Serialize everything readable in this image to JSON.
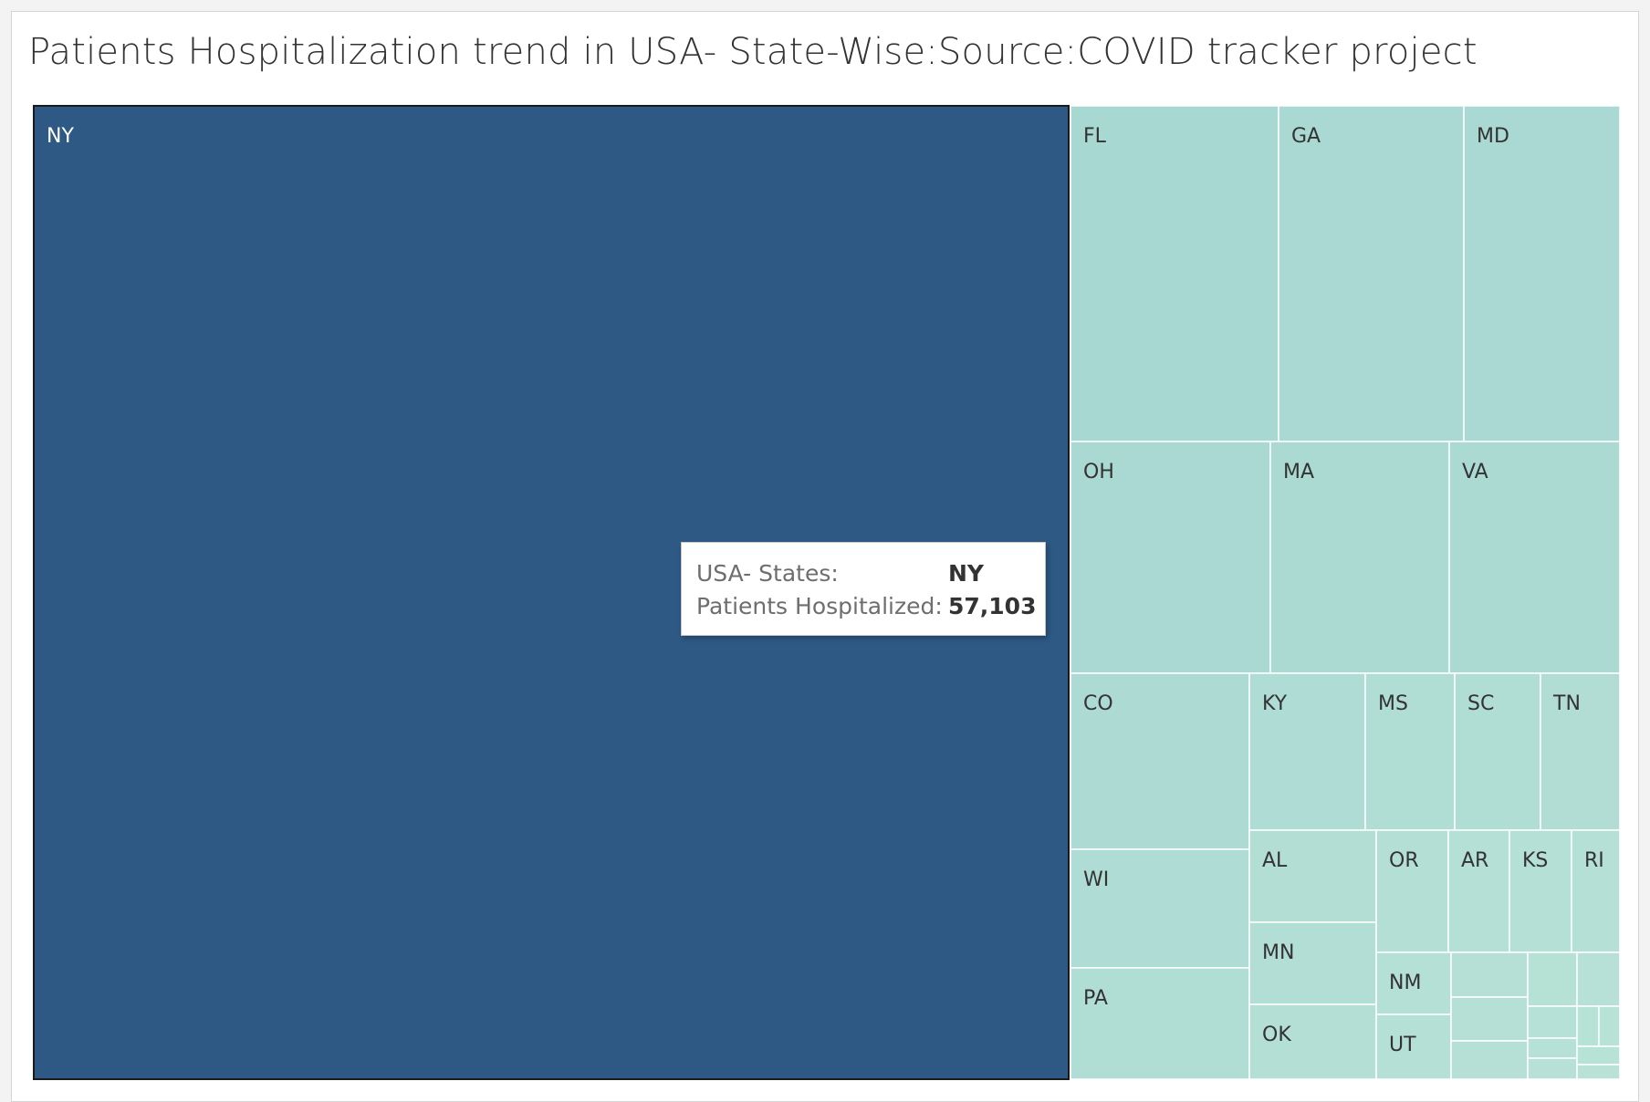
{
  "title": "Patients Hospitalization trend in USA- State-Wise:Source:COVID tracker project",
  "colors": {
    "highlight": "#2d5984",
    "min": "#b8e2d6",
    "max": "#a8d8d2",
    "labelDark": "#333333",
    "labelLight": "#ffffff"
  },
  "tooltip": {
    "state_key": "USA- States:",
    "state_value": "NY",
    "value_key": "Patients Hospitalized:",
    "value_value": "57,103"
  },
  "chart_data": {
    "type": "treemap",
    "title": "Patients Hospitalization trend in USA- State-Wise:Source:COVID tracker project",
    "measure": "Patients Hospitalized",
    "dimension": "USA- States",
    "highlighted": "NY",
    "series": [
      {
        "name": "NY",
        "value": 57103
      },
      {
        "name": "FL",
        "value": 4290
      },
      {
        "name": "GA",
        "value": 3780
      },
      {
        "name": "MD",
        "value": 3210
      },
      {
        "name": "OH",
        "value": 3190
      },
      {
        "name": "MA",
        "value": 2860
      },
      {
        "name": "VA",
        "value": 2760
      },
      {
        "name": "CO",
        "value": 2020
      },
      {
        "name": "KY",
        "value": 1320
      },
      {
        "name": "MS",
        "value": 1000
      },
      {
        "name": "SC",
        "value": 970
      },
      {
        "name": "TN",
        "value": 900
      },
      {
        "name": "WI",
        "value": 1360
      },
      {
        "name": "PA",
        "value": 1200
      },
      {
        "name": "AL",
        "value": 640
      },
      {
        "name": "MN",
        "value": 560
      },
      {
        "name": "OK",
        "value": 510
      },
      {
        "name": "OR",
        "value": 380
      },
      {
        "name": "AR",
        "value": 260
      },
      {
        "name": "KS",
        "value": 260
      },
      {
        "name": "RI",
        "value": 230
      },
      {
        "name": "NM",
        "value": 220
      },
      {
        "name": "UT",
        "value": 240
      },
      {
        "name": "",
        "value": 120
      },
      {
        "name": "",
        "value": 120
      },
      {
        "name": "",
        "value": 120
      },
      {
        "name": "",
        "value": 95
      },
      {
        "name": "",
        "value": 70
      },
      {
        "name": "",
        "value": 70
      },
      {
        "name": "",
        "value": 45
      },
      {
        "name": "",
        "value": 40
      },
      {
        "name": "",
        "value": 30
      },
      {
        "name": "",
        "value": 25
      },
      {
        "name": "",
        "value": 25
      },
      {
        "name": "",
        "value": 20
      }
    ]
  }
}
